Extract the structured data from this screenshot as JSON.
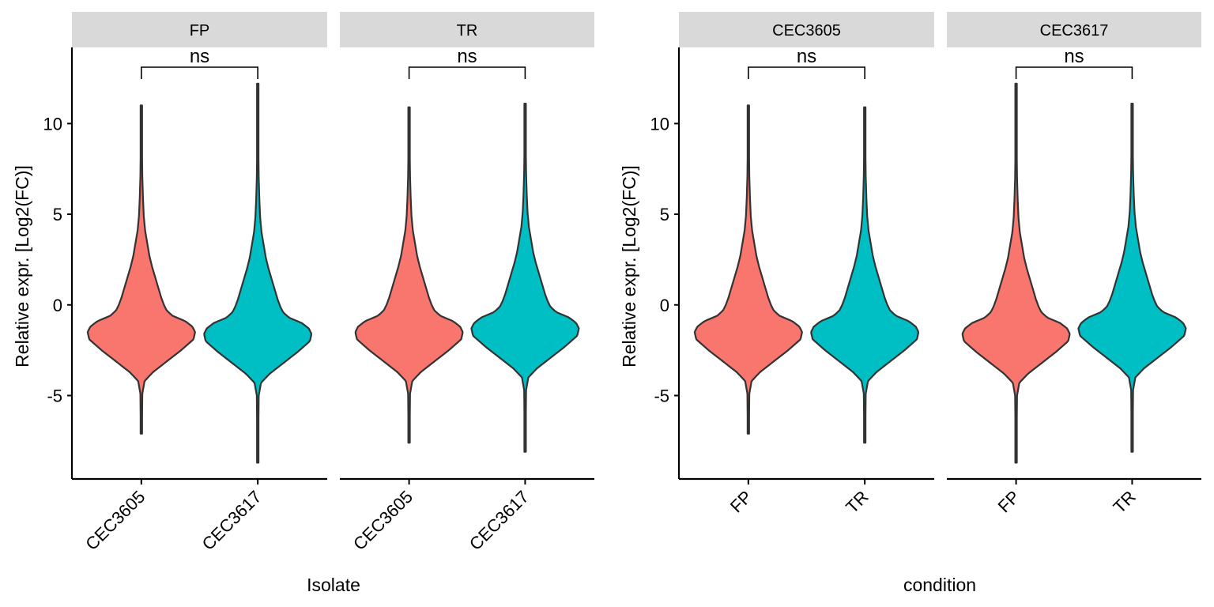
{
  "colors": {
    "series_1": "#F8766D",
    "series_2": "#00BFC4",
    "outline": "#333333",
    "strip_bg": "#D9D9D9",
    "axis": "#000000"
  },
  "chart_data": [
    {
      "type": "violin",
      "xlabel": "Isolate",
      "ylabel": "Relative expr. [Log2(FC)]",
      "ylim": [
        -9.6,
        14.2
      ],
      "y_ticks": [
        -5,
        0,
        5,
        10
      ],
      "y_tick_labels": [
        "-5",
        "0",
        "5",
        "10"
      ],
      "categories": [
        "CEC3605",
        "CEC3617"
      ],
      "grid": false,
      "panels": [
        {
          "facet": "FP",
          "significance": "ns",
          "violins": [
            {
              "category": "CEC3605",
              "min": -7.1,
              "max": 11.0,
              "median": -0.9
            },
            {
              "category": "CEC3617",
              "min": -8.7,
              "max": 12.2,
              "median": -1.0
            }
          ]
        },
        {
          "facet": "TR",
          "significance": "ns",
          "violins": [
            {
              "category": "CEC3605",
              "min": -7.6,
              "max": 10.9,
              "median": -0.9
            },
            {
              "category": "CEC3617",
              "min": -8.1,
              "max": 11.1,
              "median": -0.7
            }
          ]
        }
      ]
    },
    {
      "type": "violin",
      "xlabel": "condition",
      "ylabel": "Relative expr. [Log2(FC)]",
      "ylim": [
        -9.6,
        14.2
      ],
      "y_ticks": [
        -5,
        0,
        5,
        10
      ],
      "y_tick_labels": [
        "-5",
        "0",
        "5",
        "10"
      ],
      "categories": [
        "FP",
        "TR"
      ],
      "grid": false,
      "panels": [
        {
          "facet": "CEC3605",
          "significance": "ns",
          "violins": [
            {
              "category": "FP",
              "min": -7.1,
              "max": 11.0,
              "median": -0.9
            },
            {
              "category": "TR",
              "min": -7.6,
              "max": 10.9,
              "median": -0.9
            }
          ]
        },
        {
          "facet": "CEC3617",
          "significance": "ns",
          "violins": [
            {
              "category": "FP",
              "min": -8.7,
              "max": 12.2,
              "median": -1.0
            },
            {
              "category": "TR",
              "min": -8.1,
              "max": 11.1,
              "median": -0.7
            }
          ]
        }
      ]
    }
  ]
}
